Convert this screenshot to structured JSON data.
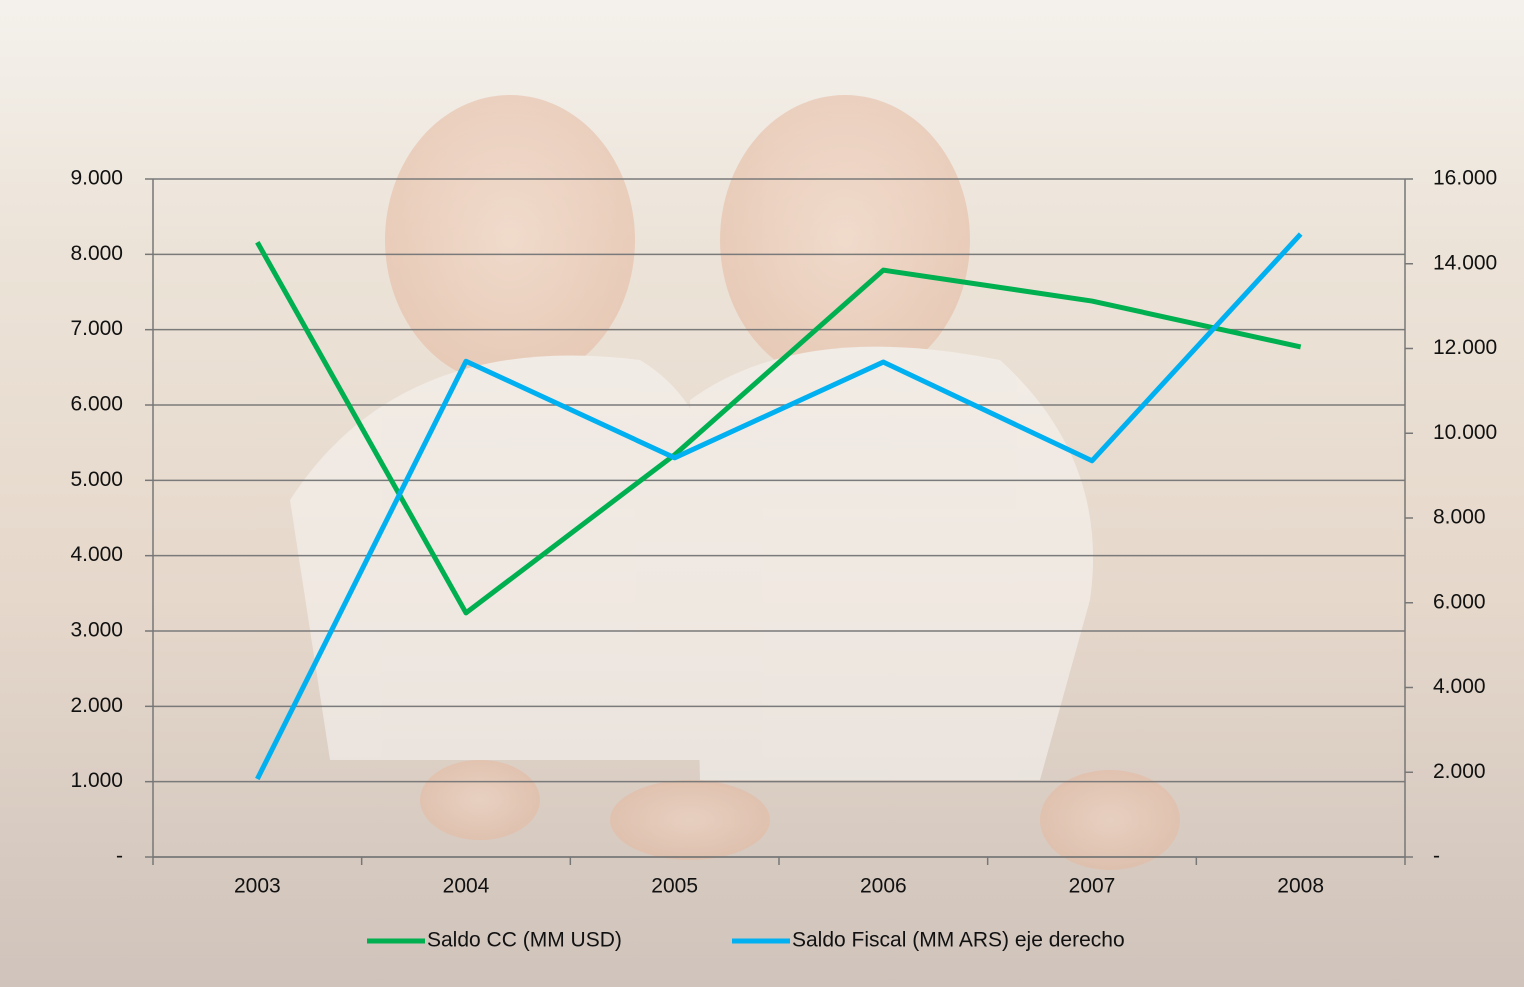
{
  "chart_data": {
    "type": "line",
    "categories": [
      "2003",
      "2004",
      "2005",
      "2006",
      "2007",
      "2008"
    ],
    "series": [
      {
        "name": "Saldo CC (MM USD)",
        "color": "#00b050",
        "values": [
          8160,
          3240,
          5340,
          7790,
          7380,
          6770
        ]
      },
      {
        "name": "Saldo Fiscal (MM ARS) eje derecho",
        "color": "#00b0f0",
        "axis": "y2",
        "values": [
          1840,
          11700,
          9420,
          11680,
          9350,
          14700
        ]
      }
    ],
    "ylim": [
      0,
      9000
    ],
    "yticks": [
      {
        "value": 0,
        "label": "-"
      },
      {
        "value": 1000,
        "label": "1.000"
      },
      {
        "value": 2000,
        "label": "2.000"
      },
      {
        "value": 3000,
        "label": "3.000"
      },
      {
        "value": 4000,
        "label": "4.000"
      },
      {
        "value": 5000,
        "label": "5.000"
      },
      {
        "value": 6000,
        "label": "6.000"
      },
      {
        "value": 7000,
        "label": "7.000"
      },
      {
        "value": 8000,
        "label": "8.000"
      },
      {
        "value": 9000,
        "label": "9.000"
      }
    ],
    "y2lim": [
      0,
      16000
    ],
    "y2ticks": [
      {
        "value": 0,
        "label": "-"
      },
      {
        "value": 2000,
        "label": "2.000"
      },
      {
        "value": 4000,
        "label": "4.000"
      },
      {
        "value": 6000,
        "label": "6.000"
      },
      {
        "value": 8000,
        "label": "8.000"
      },
      {
        "value": 10000,
        "label": "10.000"
      },
      {
        "value": 12000,
        "label": "12.000"
      },
      {
        "value": 14000,
        "label": "14.000"
      },
      {
        "value": 16000,
        "label": "16.000"
      }
    ],
    "grid": true,
    "legend": "bottom"
  }
}
